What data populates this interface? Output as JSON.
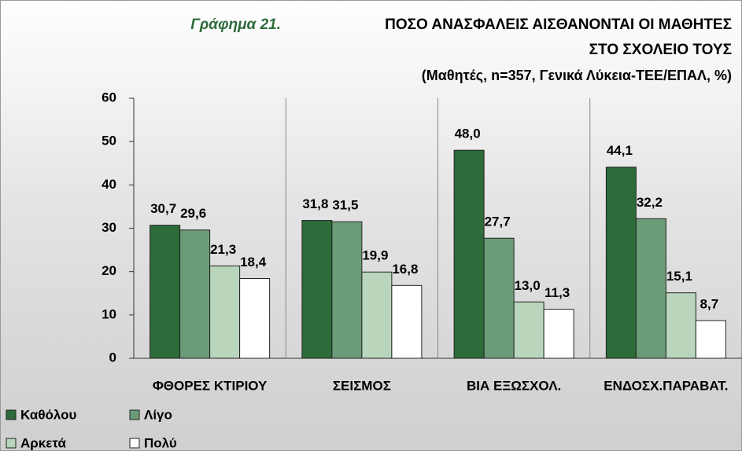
{
  "chart_data": {
    "type": "bar",
    "figure_label": "Γράφημα 21.",
    "title_lines": [
      "ΠΟΣΟ ΑΝΑΣΦΑΛΕΙΣ ΑΙΣΘΑΝΟΝΤΑΙ  ΟΙ ΜΑΘΗΤΕΣ",
      "ΣΤΟ ΣΧΟΛΕΙΟ ΤΟΥΣ"
    ],
    "subtitle": "(Μαθητές, n=357, Γενικά Λύκεια-ΤΕΕ/ΕΠΑΛ,  %)",
    "categories": [
      "ΦΘΟΡΕΣ ΚΤΙΡΙΟΥ",
      "ΣΕΙΣΜΟΣ",
      "ΒΙΑ ΕΞΩΣΧΟΛ.",
      "ΕΝΔΟΣΧ.ΠΑΡΑΒΑΤ."
    ],
    "series": [
      {
        "name": "Καθόλου",
        "color": "#2e6b3a",
        "values": [
          30.7,
          31.8,
          48.0,
          44.1
        ],
        "value_labels": [
          "30,7",
          "31,8",
          "48,0",
          "44,1"
        ]
      },
      {
        "name": "Λίγο",
        "color": "#6b9c78",
        "values": [
          29.6,
          31.5,
          27.7,
          32.2
        ],
        "value_labels": [
          "29,6",
          "31,5",
          "27,7",
          "32,2"
        ]
      },
      {
        "name": "Αρκετά",
        "color": "#b9d6bd",
        "values": [
          21.3,
          19.9,
          13.0,
          15.1
        ],
        "value_labels": [
          "21,3",
          "19,9",
          "13,0",
          "15,1"
        ]
      },
      {
        "name": "Πολύ",
        "color": "#ffffff",
        "values": [
          18.4,
          16.8,
          11.3,
          8.7
        ],
        "value_labels": [
          "18,4",
          "16,8",
          "11,3",
          "8,7"
        ]
      }
    ],
    "ylim": [
      0,
      60
    ],
    "yticks": [
      0,
      10,
      20,
      30,
      40,
      50,
      60
    ],
    "grid": false
  }
}
